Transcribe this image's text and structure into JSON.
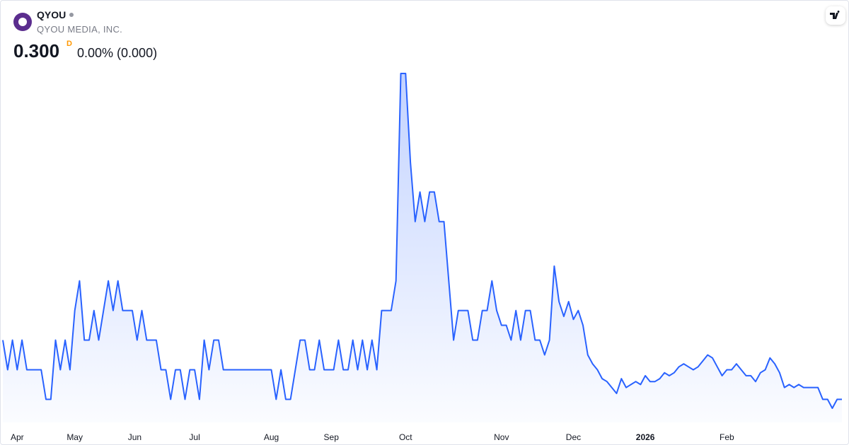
{
  "chart_data": {
    "type": "area",
    "symbol": "QYOU",
    "company": "QYOU MEDIA, INC.",
    "price": "0.300",
    "interval": "D",
    "change": "0.00% (0.000)",
    "color": "#2962ff",
    "values": [
      0.32,
      0.31,
      0.32,
      0.31,
      0.32,
      0.31,
      0.31,
      0.31,
      0.31,
      0.3,
      0.3,
      0.32,
      0.31,
      0.32,
      0.31,
      0.33,
      0.34,
      0.32,
      0.32,
      0.33,
      0.32,
      0.33,
      0.34,
      0.33,
      0.34,
      0.33,
      0.33,
      0.33,
      0.32,
      0.33,
      0.32,
      0.32,
      0.32,
      0.31,
      0.31,
      0.3,
      0.31,
      0.31,
      0.3,
      0.31,
      0.31,
      0.3,
      0.32,
      0.31,
      0.32,
      0.32,
      0.31,
      0.31,
      0.31,
      0.31,
      0.31,
      0.31,
      0.31,
      0.31,
      0.31,
      0.31,
      0.31,
      0.3,
      0.31,
      0.3,
      0.3,
      0.31,
      0.32,
      0.32,
      0.31,
      0.31,
      0.32,
      0.31,
      0.31,
      0.31,
      0.32,
      0.31,
      0.31,
      0.32,
      0.31,
      0.32,
      0.31,
      0.32,
      0.31,
      0.33,
      0.33,
      0.33,
      0.34,
      0.41,
      0.41,
      0.38,
      0.36,
      0.37,
      0.36,
      0.37,
      0.37,
      0.36,
      0.36,
      0.34,
      0.32,
      0.33,
      0.33,
      0.33,
      0.32,
      0.32,
      0.33,
      0.33,
      0.34,
      0.33,
      0.325,
      0.325,
      0.32,
      0.33,
      0.32,
      0.33,
      0.33,
      0.32,
      0.32,
      0.315,
      0.32,
      0.345,
      0.333,
      0.328,
      0.333,
      0.327,
      0.33,
      0.325,
      0.315,
      0.312,
      0.31,
      0.307,
      0.306,
      0.304,
      0.302,
      0.307,
      0.304,
      0.305,
      0.306,
      0.305,
      0.308,
      0.306,
      0.306,
      0.307,
      0.309,
      0.308,
      0.309,
      0.311,
      0.312,
      0.311,
      0.31,
      0.311,
      0.313,
      0.315,
      0.314,
      0.311,
      0.308,
      0.31,
      0.31,
      0.312,
      0.31,
      0.308,
      0.308,
      0.306,
      0.309,
      0.31,
      0.314,
      0.312,
      0.309,
      0.304,
      0.305,
      0.304,
      0.305,
      0.304,
      0.304,
      0.304,
      0.304,
      0.3,
      0.3,
      0.297,
      0.3,
      0.3
    ],
    "xticks": [
      {
        "value": 3,
        "label": "Apr"
      },
      {
        "value": 15,
        "label": "May"
      },
      {
        "value": 27.5,
        "label": "Jun"
      },
      {
        "value": 40,
        "label": "Jul"
      },
      {
        "value": 56,
        "label": "Aug"
      },
      {
        "value": 68.5,
        "label": "Sep"
      },
      {
        "value": 84,
        "label": "Oct"
      },
      {
        "value": 104,
        "label": "Nov"
      },
      {
        "value": 119,
        "label": "Dec"
      },
      {
        "value": 134,
        "label": "2026"
      },
      {
        "value": 151,
        "label": "Feb"
      }
    ]
  }
}
